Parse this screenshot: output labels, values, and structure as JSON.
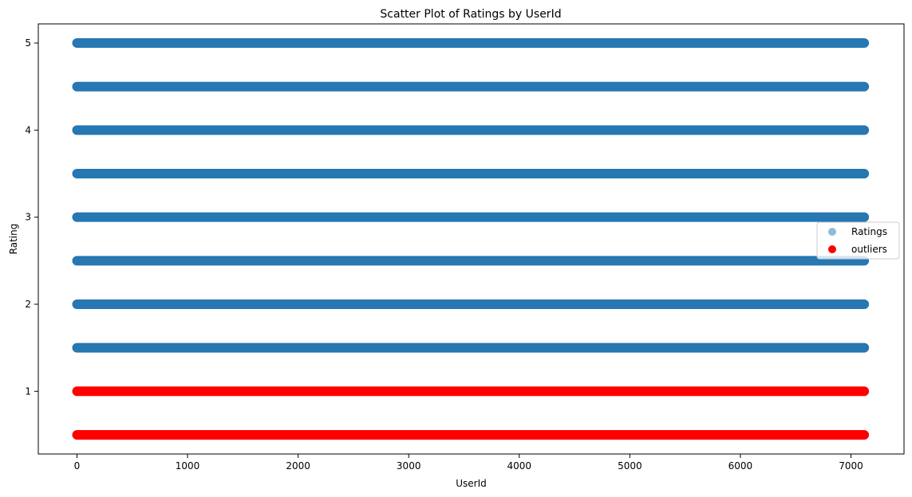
{
  "chart_data": {
    "type": "scatter",
    "title": "Scatter Plot of Ratings by UserId",
    "xlabel": "UserId",
    "ylabel": "Rating",
    "xlim": [
      -350,
      7480
    ],
    "ylim": [
      0.28,
      5.22
    ],
    "x_ticks": [
      0,
      1000,
      2000,
      3000,
      4000,
      5000,
      6000,
      7000
    ],
    "y_ticks": [
      1,
      2,
      3,
      4,
      5
    ],
    "x_range": [
      0,
      7120
    ],
    "grid": false,
    "legend_position": "center-right",
    "series": [
      {
        "name": "Ratings",
        "color": "#1f77b4",
        "alpha": 0.5,
        "levels": [
          1.5,
          2.0,
          2.5,
          3.0,
          3.5,
          4.0,
          4.5,
          5.0
        ]
      },
      {
        "name": "outliers",
        "color": "#ff0000",
        "alpha": 1.0,
        "levels": [
          0.5,
          1.0
        ]
      }
    ]
  }
}
